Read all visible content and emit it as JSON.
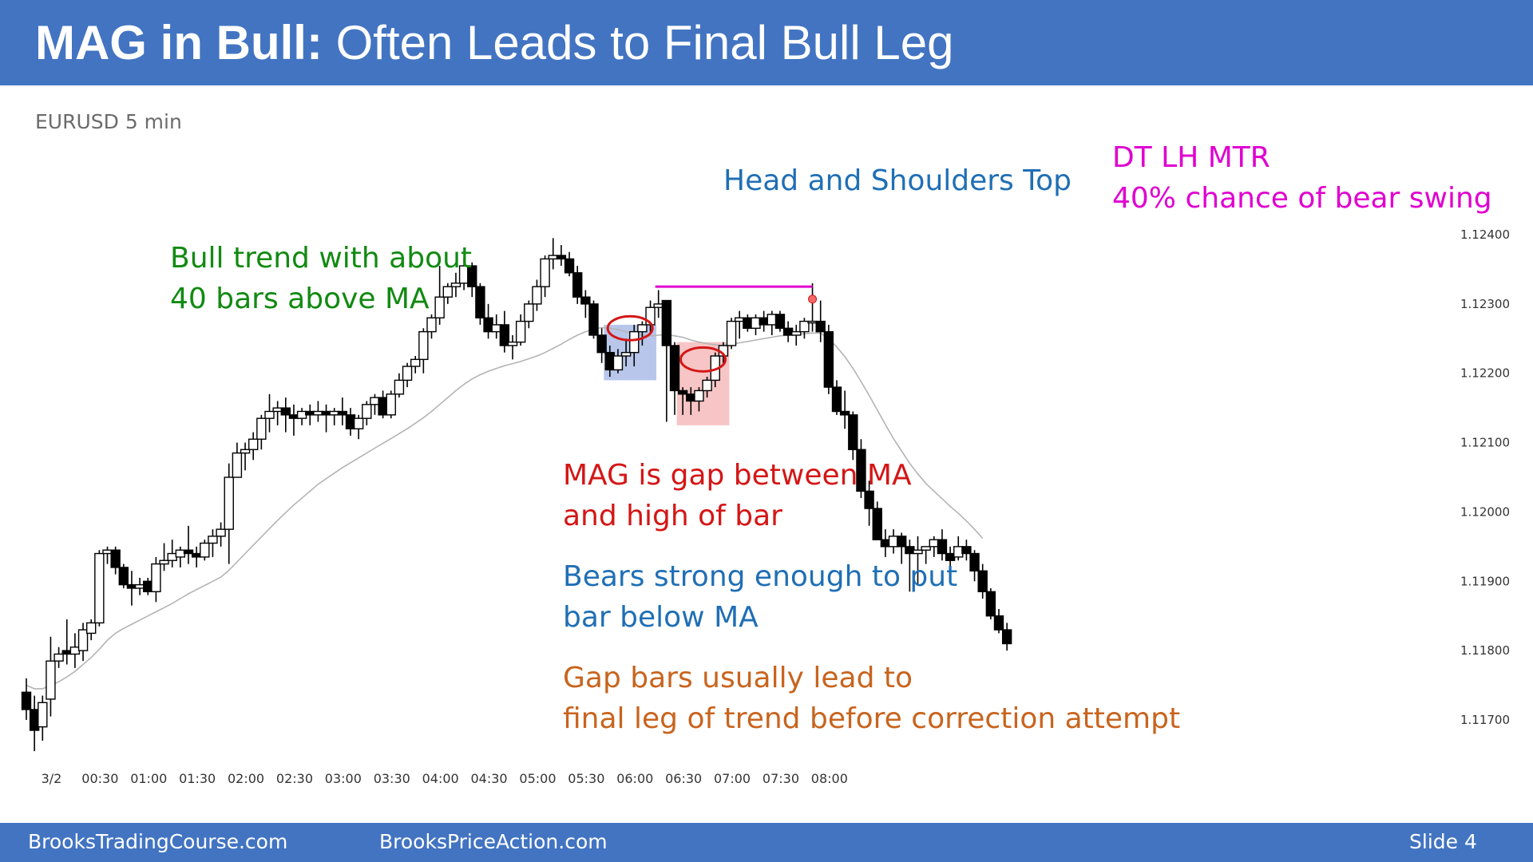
{
  "header": {
    "title_bold": "MAG in Bull:",
    "title_rest": " Often Leads to Final Bull Leg",
    "background": "#4274c2"
  },
  "chart_subtitle": "EURUSD 5 min",
  "annotations": {
    "bull_trend": [
      "Bull trend with about",
      "40 bars above MA"
    ],
    "hs_top": "Head and Shoulders Top",
    "dt_lh": [
      "DT LH MTR",
      "40% chance of bear swing"
    ],
    "mag_def": [
      "MAG is gap between MA",
      "and high of bar"
    ],
    "bears": [
      "Bears strong enough to put",
      "bar below MA"
    ],
    "gap_bars": [
      "Gap bars usually lead to",
      "final leg of trend before correction attempt"
    ]
  },
  "colors": {
    "green": "#118a11",
    "blue": "#1f6fb5",
    "magenta": "#e000d0",
    "red": "#d41616",
    "orange": "#c8641e",
    "ma_line": "#b4b4b4",
    "highlight_blue": "#9fb3e3",
    "highlight_red": "#f3a6a6"
  },
  "footer": {
    "left": "BrooksTradingCourse.com",
    "center": "BrooksPriceAction.com",
    "right": "Slide  4"
  },
  "chart_data": {
    "type": "candlestick",
    "instrument": "EURUSD 5 min",
    "bar_interval_minutes": 5,
    "x_ticks": [
      "3/2",
      "00:30",
      "01:00",
      "01:30",
      "02:00",
      "02:30",
      "03:00",
      "03:30",
      "04:00",
      "04:30",
      "05:00",
      "05:30",
      "06:00",
      "06:30",
      "07:00",
      "07:30",
      "08:00"
    ],
    "y_ticks": [
      1.117,
      1.118,
      1.119,
      1.12,
      1.121,
      1.122,
      1.123,
      1.124
    ],
    "y_tick_labels": [
      "1.11700",
      "1.11800",
      "1.11900",
      "1.12000",
      "1.12100",
      "1.12200",
      "1.12300",
      "1.12400"
    ],
    "ylim": [
      1.1165,
      1.1241
    ],
    "grid": false,
    "series": [
      {
        "name": "EURUSD",
        "ohlc": [
          [
            1.1174,
            1.1176,
            1.117,
            1.11715
          ],
          [
            1.11715,
            1.11735,
            1.11655,
            1.11685
          ],
          [
            1.1169,
            1.11735,
            1.1167,
            1.11725
          ],
          [
            1.1173,
            1.1182,
            1.11705,
            1.11785
          ],
          [
            1.11785,
            1.11805,
            1.11775,
            1.11795
          ],
          [
            1.118,
            1.11845,
            1.1178,
            1.11795
          ],
          [
            1.11795,
            1.11825,
            1.11775,
            1.11805
          ],
          [
            1.118,
            1.1184,
            1.11785,
            1.1183
          ],
          [
            1.11825,
            1.11845,
            1.11815,
            1.1184
          ],
          [
            1.1184,
            1.11945,
            1.11835,
            1.1194
          ],
          [
            1.1194,
            1.1195,
            1.11925,
            1.11945
          ],
          [
            1.11945,
            1.1195,
            1.1191,
            1.1192
          ],
          [
            1.1192,
            1.11925,
            1.1189,
            1.11895
          ],
          [
            1.11895,
            1.11915,
            1.11865,
            1.1189
          ],
          [
            1.1189,
            1.11905,
            1.1188,
            1.11895
          ],
          [
            1.119,
            1.11905,
            1.1188,
            1.11885
          ],
          [
            1.11885,
            1.11935,
            1.1187,
            1.11925
          ],
          [
            1.11925,
            1.11955,
            1.11915,
            1.1193
          ],
          [
            1.1193,
            1.1196,
            1.1192,
            1.1194
          ],
          [
            1.11935,
            1.1195,
            1.1192,
            1.11945
          ],
          [
            1.11945,
            1.1198,
            1.11925,
            1.1194
          ],
          [
            1.1194,
            1.1195,
            1.1192,
            1.11935
          ],
          [
            1.11935,
            1.1196,
            1.1193,
            1.11955
          ],
          [
            1.11955,
            1.11975,
            1.11935,
            1.11965
          ],
          [
            1.11965,
            1.11985,
            1.1195,
            1.11975
          ],
          [
            1.11975,
            1.1207,
            1.11925,
            1.1205
          ],
          [
            1.1205,
            1.121,
            1.1205,
            1.12085
          ],
          [
            1.12085,
            1.121,
            1.1206,
            1.1209
          ],
          [
            1.1209,
            1.12115,
            1.12075,
            1.12105
          ],
          [
            1.12105,
            1.1214,
            1.1209,
            1.12135
          ],
          [
            1.12135,
            1.1217,
            1.12115,
            1.12145
          ],
          [
            1.12145,
            1.1216,
            1.12125,
            1.1215
          ],
          [
            1.1215,
            1.12165,
            1.12115,
            1.1214
          ],
          [
            1.1214,
            1.12155,
            1.1211,
            1.12135
          ],
          [
            1.12135,
            1.1215,
            1.12125,
            1.12145
          ],
          [
            1.12145,
            1.12155,
            1.12125,
            1.1214
          ],
          [
            1.1214,
            1.1216,
            1.1213,
            1.12145
          ],
          [
            1.12145,
            1.12155,
            1.12115,
            1.1214
          ],
          [
            1.1214,
            1.1215,
            1.12125,
            1.12145
          ],
          [
            1.12145,
            1.12165,
            1.12125,
            1.1214
          ],
          [
            1.1214,
            1.1215,
            1.1211,
            1.1212
          ],
          [
            1.1212,
            1.1214,
            1.12105,
            1.12135
          ],
          [
            1.12135,
            1.1216,
            1.12125,
            1.12155
          ],
          [
            1.12155,
            1.1217,
            1.1214,
            1.12165
          ],
          [
            1.12165,
            1.12175,
            1.12135,
            1.1214
          ],
          [
            1.1214,
            1.12175,
            1.12135,
            1.1217
          ],
          [
            1.1217,
            1.122,
            1.12165,
            1.1219
          ],
          [
            1.1219,
            1.12215,
            1.1218,
            1.1221
          ],
          [
            1.1221,
            1.12225,
            1.122,
            1.1222
          ],
          [
            1.1222,
            1.12265,
            1.122,
            1.1226
          ],
          [
            1.1226,
            1.12285,
            1.1225,
            1.1228
          ],
          [
            1.1228,
            1.12355,
            1.1227,
            1.1231
          ],
          [
            1.1231,
            1.1233,
            1.123,
            1.12325
          ],
          [
            1.12325,
            1.12345,
            1.1231,
            1.1233
          ],
          [
            1.1233,
            1.12365,
            1.1232,
            1.12355
          ],
          [
            1.12355,
            1.1236,
            1.1231,
            1.12325
          ],
          [
            1.12325,
            1.1233,
            1.1227,
            1.1228
          ],
          [
            1.1228,
            1.123,
            1.1225,
            1.1226
          ],
          [
            1.1226,
            1.12285,
            1.1225,
            1.1227
          ],
          [
            1.1227,
            1.1229,
            1.1223,
            1.1224
          ],
          [
            1.1224,
            1.12255,
            1.1222,
            1.12245
          ],
          [
            1.12245,
            1.12285,
            1.1224,
            1.12275
          ],
          [
            1.12275,
            1.12305,
            1.12265,
            1.123
          ],
          [
            1.123,
            1.12335,
            1.1229,
            1.12325
          ],
          [
            1.12325,
            1.1237,
            1.1231,
            1.12365
          ],
          [
            1.12365,
            1.12395,
            1.1235,
            1.1237
          ],
          [
            1.1237,
            1.12385,
            1.12355,
            1.12365
          ],
          [
            1.12365,
            1.12375,
            1.1234,
            1.12345
          ],
          [
            1.12345,
            1.12355,
            1.123,
            1.1231
          ],
          [
            1.1231,
            1.1232,
            1.1228,
            1.123
          ],
          [
            1.123,
            1.12305,
            1.1225,
            1.12255
          ],
          [
            1.12255,
            1.12265,
            1.12215,
            1.1223
          ],
          [
            1.1223,
            1.1224,
            1.12195,
            1.12205
          ],
          [
            1.12205,
            1.12235,
            1.122,
            1.12225
          ],
          [
            1.12225,
            1.1225,
            1.1221,
            1.1223
          ],
          [
            1.1223,
            1.1227,
            1.1221,
            1.1226
          ],
          [
            1.1226,
            1.12275,
            1.1224,
            1.1227
          ],
          [
            1.1227,
            1.12305,
            1.1226,
            1.12295
          ],
          [
            1.12295,
            1.1232,
            1.1228,
            1.123
          ],
          [
            1.12305,
            1.12305,
            1.1213,
            1.1224
          ],
          [
            1.1224,
            1.12245,
            1.1214,
            1.12175
          ],
          [
            1.12175,
            1.1218,
            1.1214,
            1.1217
          ],
          [
            1.1217,
            1.1218,
            1.1214,
            1.1216
          ],
          [
            1.1216,
            1.1218,
            1.12145,
            1.12175
          ],
          [
            1.12175,
            1.12195,
            1.12165,
            1.1219
          ],
          [
            1.1219,
            1.1223,
            1.1218,
            1.12225
          ],
          [
            1.12225,
            1.12245,
            1.12215,
            1.1224
          ],
          [
            1.1224,
            1.1228,
            1.12235,
            1.12275
          ],
          [
            1.12275,
            1.1229,
            1.1225,
            1.1228
          ],
          [
            1.1228,
            1.12285,
            1.1226,
            1.12265
          ],
          [
            1.12265,
            1.12285,
            1.12255,
            1.1228
          ],
          [
            1.1228,
            1.1229,
            1.1226,
            1.1227
          ],
          [
            1.1227,
            1.1229,
            1.12255,
            1.12285
          ],
          [
            1.12285,
            1.1229,
            1.1226,
            1.12265
          ],
          [
            1.12265,
            1.12275,
            1.12245,
            1.12255
          ],
          [
            1.12255,
            1.1227,
            1.1224,
            1.1226
          ],
          [
            1.1226,
            1.1228,
            1.1225,
            1.12275
          ],
          [
            1.12275,
            1.1233,
            1.1226,
            1.12275
          ],
          [
            1.12275,
            1.12305,
            1.12245,
            1.1226
          ],
          [
            1.1226,
            1.1227,
            1.1217,
            1.1218
          ],
          [
            1.1218,
            1.1219,
            1.1214,
            1.12145
          ],
          [
            1.12145,
            1.12175,
            1.1212,
            1.1214
          ],
          [
            1.1214,
            1.12145,
            1.12075,
            1.1209
          ],
          [
            1.1209,
            1.12105,
            1.1202,
            1.1203
          ],
          [
            1.1203,
            1.12045,
            1.1198,
            1.12005
          ],
          [
            1.12005,
            1.12015,
            1.1196,
            1.1196
          ],
          [
            1.1196,
            1.11975,
            1.11935,
            1.1195
          ],
          [
            1.1195,
            1.11975,
            1.1194,
            1.11965
          ],
          [
            1.11965,
            1.1197,
            1.11925,
            1.1195
          ],
          [
            1.1195,
            1.1196,
            1.11885,
            1.1194
          ],
          [
            1.1194,
            1.11965,
            1.11895,
            1.11945
          ],
          [
            1.11945,
            1.1195,
            1.11925,
            1.1195
          ],
          [
            1.1195,
            1.11965,
            1.11935,
            1.1196
          ],
          [
            1.1196,
            1.11975,
            1.1193,
            1.1194
          ],
          [
            1.1194,
            1.1195,
            1.11915,
            1.1193
          ],
          [
            1.11935,
            1.11965,
            1.1193,
            1.1195
          ],
          [
            1.1195,
            1.1196,
            1.1193,
            1.1194
          ],
          [
            1.1194,
            1.11945,
            1.119,
            1.11915
          ],
          [
            1.11915,
            1.11925,
            1.11875,
            1.11885
          ],
          [
            1.11885,
            1.1189,
            1.11845,
            1.1185
          ],
          [
            1.1185,
            1.1186,
            1.11825,
            1.1183
          ],
          [
            1.1183,
            1.1184,
            1.118,
            1.1181
          ]
        ]
      },
      {
        "name": "MA",
        "values": [
          1.1175,
          1.11745,
          1.11745,
          1.1175,
          1.11755,
          1.11762,
          1.1177,
          1.1178,
          1.1179,
          1.11802,
          1.11815,
          1.11825,
          1.11832,
          1.11838,
          1.11844,
          1.1185,
          1.11856,
          1.11862,
          1.11868,
          1.11875,
          1.11882,
          1.11888,
          1.11894,
          1.119,
          1.11906,
          1.11916,
          1.11928,
          1.1194,
          1.11952,
          1.11964,
          1.11976,
          1.11988,
          1.11999,
          1.1201,
          1.1202,
          1.1203,
          1.1204,
          1.12048,
          1.12056,
          1.12064,
          1.12071,
          1.12078,
          1.12085,
          1.12092,
          1.12099,
          1.12106,
          1.12113,
          1.1212,
          1.12128,
          1.12136,
          1.12145,
          1.12155,
          1.12165,
          1.12175,
          1.12184,
          1.12192,
          1.12198,
          1.12203,
          1.12207,
          1.12211,
          1.12214,
          1.12217,
          1.12221,
          1.12225,
          1.1223,
          1.12236,
          1.12242,
          1.12249,
          1.12255,
          1.1226,
          1.12264,
          1.12266,
          1.12265,
          1.12263,
          1.1226,
          1.12257,
          1.12255,
          1.12254,
          1.12255,
          1.12256,
          1.12254,
          1.12252,
          1.12248,
          1.12245,
          1.12243,
          1.12241,
          1.1224,
          1.12242,
          1.12244,
          1.12246,
          1.12248,
          1.1225,
          1.12252,
          1.12254,
          1.12255,
          1.12256,
          1.12257,
          1.12258,
          1.12258,
          1.1225,
          1.12238,
          1.12224,
          1.12207,
          1.12188,
          1.12168,
          1.12147,
          1.12126,
          1.12106,
          1.12088,
          1.1207,
          1.12055,
          1.12041,
          1.1203,
          1.12019,
          1.12008,
          1.11998,
          1.11987,
          1.11975,
          1.11962,
          null,
          null
        ]
      }
    ],
    "levels": [
      {
        "name": "double top line",
        "y": 1.12325,
        "from_bar": 78,
        "to_bar": 97
      }
    ],
    "highlight_zones": [
      {
        "from_bar": 72,
        "to_bar": 77,
        "y_low": 1.1219,
        "y_high": 1.1227
      },
      {
        "from_bar": 81,
        "to_bar": 86,
        "y_low": 1.12125,
        "y_high": 1.12245
      }
    ],
    "ellipse_marks": [
      {
        "bar": 74.5,
        "y": 1.12265
      },
      {
        "bar": 83.5,
        "y": 1.1222
      }
    ],
    "dot_mark": {
      "bar": 97,
      "y": 1.12307
    }
  }
}
